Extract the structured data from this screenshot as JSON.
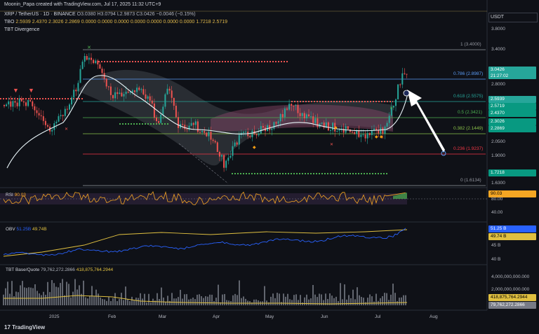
{
  "top_caption": "Moonin_Papa created with TradingView.com, Jul 17, 2025 11:32 UTC+9",
  "symbol_line": {
    "title": "XRP / TetherUS · 1D · BINANCE",
    "ohlc": "O3.0380 H3.0794 L2.9873 C3.0426 −0.0046 (−0.15%)"
  },
  "tbo_line": {
    "name": "TBO",
    "values": "2.5939  2.4370  2.3026  2.2869  0.0000  0.0000  0.0000  0.0000  0.0000  0.0000  0.0000  1.7218  2.5719"
  },
  "divergence_label": "TBT Divergence",
  "currency": "USDT",
  "price_axis": [
    "3.8000",
    "3.4000",
    "2.8000",
    "2.0500",
    "1.9000",
    "1.6300"
  ],
  "fib_levels": [
    {
      "label": "1 (3.4000)",
      "color": "#9598a1"
    },
    {
      "label": "0.786 (2.8987)",
      "color": "#5b9cf6"
    },
    {
      "label": "0.618 (2.5575)",
      "color": "#26a69a"
    },
    {
      "label": "0.5 (2.3421)",
      "color": "#4caf50"
    },
    {
      "label": "0.382 (2.1449)",
      "color": "#8bc34a"
    },
    {
      "label": "0.236 (1.9237)",
      "color": "#f23645"
    },
    {
      "label": "0 (1.6134)",
      "color": "#9598a1"
    }
  ],
  "price_badges": [
    {
      "text": "3.0426",
      "sub": "21:27:02",
      "color": "#26a69a"
    },
    {
      "text": "2.5939",
      "color": "#26a69a"
    },
    {
      "text": "2.5719",
      "color": "#089981"
    },
    {
      "text": "2.4370",
      "color": "#089981"
    },
    {
      "text": "2.3026",
      "color": "#089981"
    },
    {
      "text": "2.2869",
      "color": "#089981"
    },
    {
      "text": "1.7218",
      "color": "#089981"
    }
  ],
  "rsi": {
    "label": "RSI",
    "value": "90.03",
    "axis": [
      "80.00",
      "40.00"
    ]
  },
  "obv": {
    "label": "OBV",
    "v1": "51.25B",
    "v2": "49.74B",
    "axis": [
      "45 B",
      "40 B"
    ],
    "badge1": "51.25 B",
    "badge2": "49.74 B"
  },
  "tbt": {
    "label": "TBT Base/Quote",
    "v1": "79,762,272.2866",
    "v2": "418,875,764.2944",
    "axis": [
      "4,000,000,000.000",
      "2,000,000,000.000"
    ],
    "badge1": "418,875,764.2944",
    "badge2": "79,762,272.2866"
  },
  "time_axis": [
    "2025",
    "Feb",
    "Mar",
    "Apr",
    "May",
    "Jun",
    "Jul",
    "Aug"
  ],
  "logo_text": "TradingView",
  "colors": {
    "bg": "#0f1117",
    "up": "#26a69a",
    "down": "#ef5350",
    "fib_zone": "#8c4a6a"
  }
}
